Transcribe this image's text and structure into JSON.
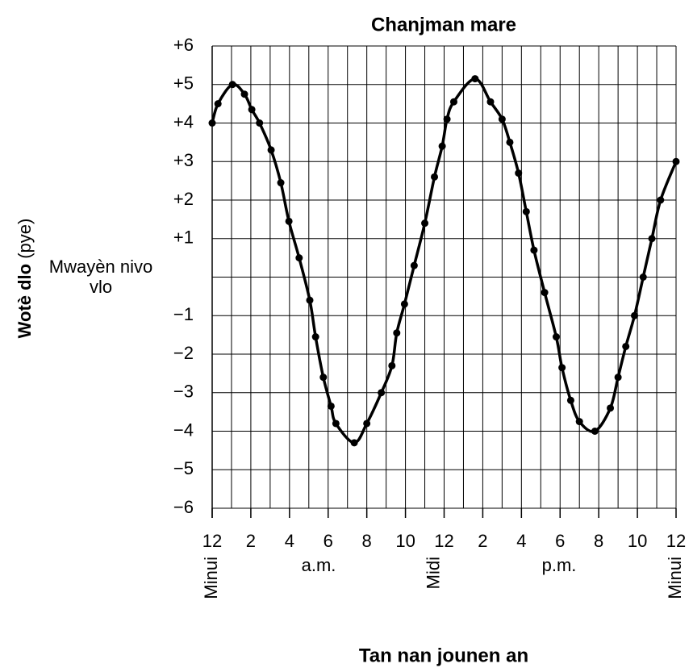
{
  "chart_data": {
    "type": "line",
    "title": "Chanjman mare",
    "ylabel": "Wotè dlo",
    "ylabel_unit": "(pye)",
    "xlabel": "Tan nan jounen an",
    "annotations": [
      "Minui",
      "a.m.",
      "Midi",
      "p.m.",
      "Minui"
    ],
    "xlim": [
      0,
      24
    ],
    "xticks": [
      {
        "value": 0,
        "label": "12"
      },
      2,
      4,
      6,
      8,
      10,
      12,
      {
        "value": 14,
        "label": "2"
      },
      {
        "value": 16,
        "label": "4"
      },
      {
        "value": 18,
        "label": "6"
      },
      {
        "value": 20,
        "label": "8"
      },
      {
        "value": 22,
        "label": "10"
      },
      {
        "value": 24,
        "label": "12"
      }
    ],
    "xminor_ticks": [
      1,
      3,
      5,
      7,
      9,
      11,
      13,
      15,
      17,
      19,
      21,
      23
    ],
    "ylim": [
      -6,
      6
    ],
    "yticks": [
      {
        "value": 6,
        "label": "+6"
      },
      {
        "value": 5,
        "label": "+5"
      },
      {
        "value": 4,
        "label": "+4"
      },
      {
        "value": 3,
        "label": "+3"
      },
      {
        "value": 2,
        "label": "+2"
      },
      {
        "value": 1,
        "label": "+1"
      },
      {
        "value": 0,
        "label": "Mwayèn nivo vlo"
      },
      {
        "value": -1,
        "label": "−1"
      },
      {
        "value": -2,
        "label": "−2"
      },
      {
        "value": -3,
        "label": "−3"
      },
      {
        "value": -4,
        "label": "−4"
      },
      {
        "value": -5,
        "label": "−5"
      },
      {
        "value": -6,
        "label": "−6"
      }
    ],
    "grid": true,
    "color": "#000000",
    "x": [
      0,
      0.3,
      1.05,
      1.67,
      2.05,
      2.45,
      3.05,
      3.55,
      3.97,
      4.5,
      5.05,
      5.35,
      5.75,
      6.15,
      6.4,
      7.35,
      8.0,
      8.75,
      9.3,
      9.55,
      9.95,
      10.45,
      11.0,
      11.5,
      11.9,
      12.15,
      12.5,
      13.6,
      14.4,
      15.0,
      15.4,
      15.85,
      16.25,
      16.65,
      17.2,
      17.8,
      18.1,
      18.55,
      19.0,
      19.8,
      20.6,
      21.0,
      21.4,
      21.85,
      22.3,
      22.75,
      23.2,
      24
    ],
    "values": [
      4.0,
      4.5,
      5.0,
      4.75,
      4.35,
      4.0,
      3.3,
      2.45,
      1.45,
      0.5,
      -0.6,
      -1.55,
      -2.6,
      -3.35,
      -3.8,
      -4.3,
      -3.8,
      -3.0,
      -2.3,
      -1.45,
      -0.7,
      0.3,
      1.4,
      2.6,
      3.4,
      4.1,
      4.55,
      5.15,
      4.55,
      4.1,
      3.5,
      2.7,
      1.7,
      0.7,
      -0.4,
      -1.55,
      -2.35,
      -3.2,
      -3.75,
      -4.0,
      -3.4,
      -2.6,
      -1.8,
      -1.0,
      0.0,
      1.0,
      2.0,
      3.0
    ]
  }
}
